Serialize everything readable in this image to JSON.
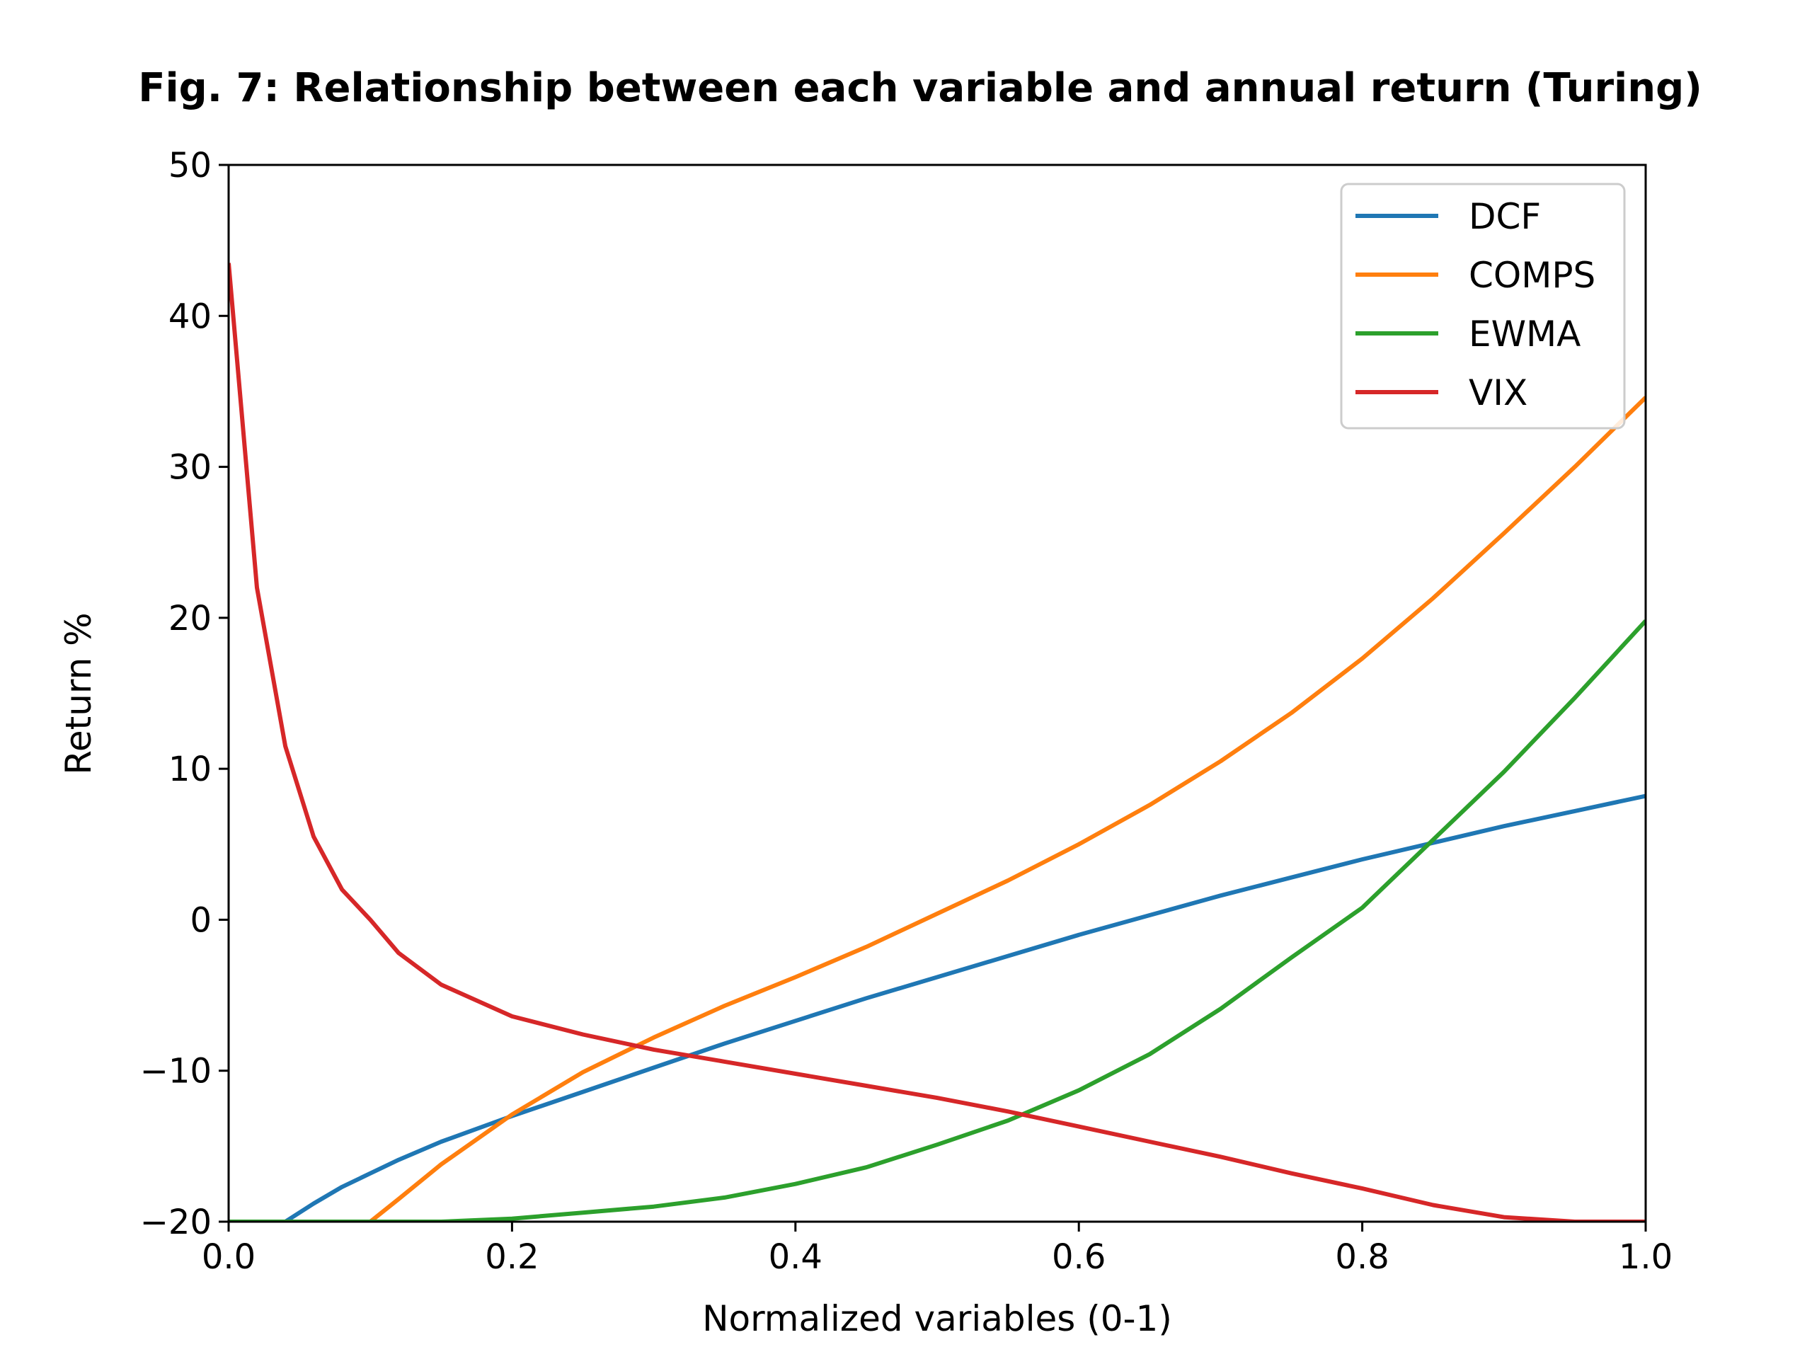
{
  "chart_data": {
    "type": "line",
    "title": "Fig. 7: Relationship between each variable and annual return (Turing)",
    "xlabel": "Normalized variables (0-1)",
    "ylabel": "Return %",
    "xlim": [
      0.0,
      1.0
    ],
    "ylim": [
      -20,
      50
    ],
    "xticks": [
      0.0,
      0.2,
      0.4,
      0.6,
      0.8,
      1.0
    ],
    "xtick_labels": [
      "0.0",
      "0.2",
      "0.4",
      "0.6",
      "0.8",
      "1.0"
    ],
    "yticks": [
      -20,
      -10,
      0,
      10,
      20,
      30,
      40,
      50
    ],
    "ytick_labels": [
      "−20",
      "−10",
      "0",
      "10",
      "20",
      "30",
      "40",
      "50"
    ],
    "grid": false,
    "legend_position": "top-right",
    "x": [
      0.0,
      0.02,
      0.04,
      0.06,
      0.08,
      0.1,
      0.12,
      0.15,
      0.2,
      0.25,
      0.3,
      0.35,
      0.4,
      0.45,
      0.5,
      0.55,
      0.6,
      0.65,
      0.7,
      0.75,
      0.8,
      0.85,
      0.9,
      0.95,
      1.0
    ],
    "series": [
      {
        "name": "DCF",
        "color": "#1f77b4",
        "values": [
          -20,
          -20,
          -20,
          -18.8,
          -17.7,
          -16.8,
          -15.9,
          -14.7,
          -13.0,
          -11.4,
          -9.8,
          -8.2,
          -6.7,
          -5.2,
          -3.8,
          -2.4,
          -1.0,
          0.3,
          1.6,
          2.8,
          4.0,
          5.1,
          6.2,
          7.2,
          8.2
        ]
      },
      {
        "name": "COMPS",
        "color": "#ff7f0e",
        "values": [
          -20,
          -20,
          -20,
          -20,
          -20,
          -20,
          -18.5,
          -16.2,
          -12.9,
          -10.1,
          -7.8,
          -5.7,
          -3.8,
          -1.8,
          0.4,
          2.6,
          5.0,
          7.6,
          10.5,
          13.7,
          17.3,
          21.3,
          25.6,
          30.0,
          34.6
        ]
      },
      {
        "name": "EWMA",
        "color": "#2ca02c",
        "values": [
          -20,
          -20,
          -20,
          -20,
          -20,
          -20,
          -20,
          -20,
          -19.8,
          -19.4,
          -19.0,
          -18.4,
          -17.5,
          -16.4,
          -14.9,
          -13.3,
          -11.3,
          -8.9,
          -5.9,
          -2.5,
          0.8,
          5.3,
          9.8,
          14.7,
          19.8
        ]
      },
      {
        "name": "VIX",
        "color": "#d62728",
        "values": [
          43.5,
          22.0,
          11.5,
          5.5,
          2.0,
          0.0,
          -2.2,
          -4.3,
          -6.4,
          -7.6,
          -8.6,
          -9.4,
          -10.2,
          -11.0,
          -11.8,
          -12.7,
          -13.7,
          -14.7,
          -15.7,
          -16.8,
          -17.8,
          -18.9,
          -19.7,
          -20.0,
          -20.0
        ]
      }
    ]
  }
}
